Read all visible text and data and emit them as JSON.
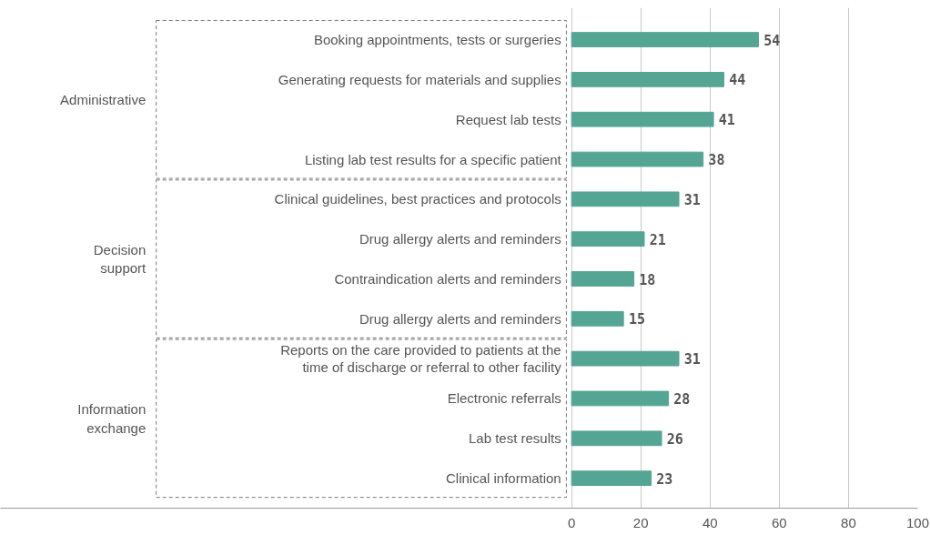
{
  "chart_data": {
    "type": "bar",
    "orientation": "horizontal",
    "categories": [
      "Booking appointments, tests or surgeries",
      "Generating requests for materials and supplies",
      "Request lab tests",
      "Listing lab test results for a specific patient",
      "Clinical guidelines, best practices and protocols",
      "Drug allergy alerts and reminders",
      "Contraindication alerts and reminders",
      "Drug allergy alerts and reminders",
      "Reports on the care provided to patients at the time of discharge or referral to other facility",
      "Electronic referrals",
      "Lab test results",
      "Clinical information"
    ],
    "values": [
      54,
      44,
      41,
      38,
      31,
      21,
      18,
      15,
      31,
      28,
      26,
      23
    ],
    "color": "#55a595",
    "data_labels": true,
    "xlim": [
      0,
      100
    ],
    "xticks": [
      0,
      20,
      40,
      60,
      80,
      100
    ],
    "grid": "x",
    "annotations": [
      "Administrative",
      "Decision support",
      "Information exchange"
    ]
  }
}
